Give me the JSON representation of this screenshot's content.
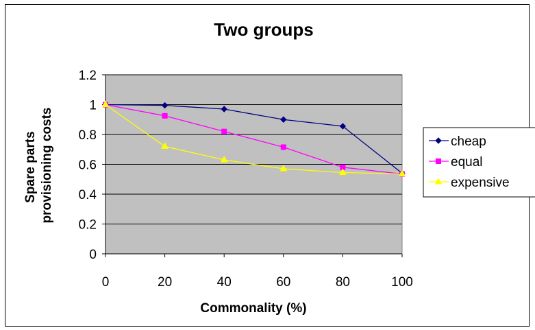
{
  "chart_data": {
    "type": "line",
    "title": "Two groups",
    "xlabel": "Commonality (%)",
    "ylabel": [
      "Spare parts",
      "provisioning costs"
    ],
    "x": [
      0,
      20,
      40,
      60,
      80,
      100
    ],
    "xticks": [
      "0",
      "20",
      "40",
      "60",
      "80",
      "100"
    ],
    "yticks": [
      "0",
      "0.2",
      "0.4",
      "0.6",
      "0.8",
      "1",
      "1.2"
    ],
    "xlim": [
      0,
      100
    ],
    "ylim": [
      0,
      1.2
    ],
    "grid": "horizontal",
    "plot_background": "#c0c0c0",
    "legend_position": "right",
    "series": [
      {
        "name": "cheap",
        "color": "#000080",
        "marker": "diamond",
        "values": [
          1.0,
          0.995,
          0.97,
          0.9,
          0.855,
          0.54
        ]
      },
      {
        "name": "equal",
        "color": "#ff00ff",
        "marker": "square",
        "values": [
          1.0,
          0.925,
          0.82,
          0.715,
          0.58,
          0.535
        ]
      },
      {
        "name": "expensive",
        "color": "#ffff00",
        "marker": "triangle",
        "values": [
          1.0,
          0.72,
          0.63,
          0.57,
          0.545,
          0.535
        ]
      }
    ]
  }
}
